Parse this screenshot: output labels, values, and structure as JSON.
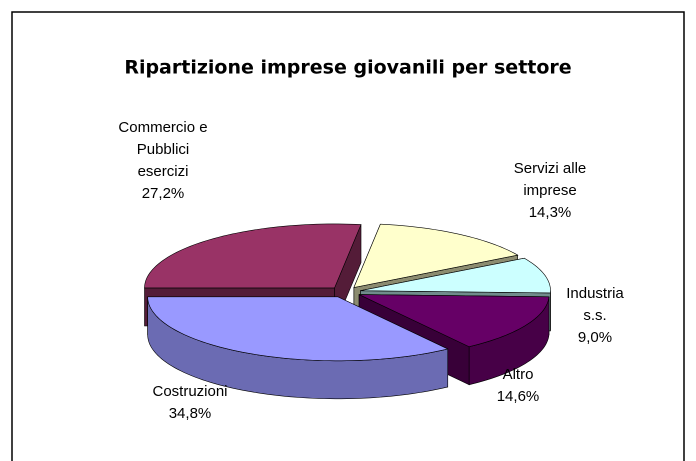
{
  "chart_data": {
    "type": "pie",
    "title": "Ripartizione imprese giovanili per settore",
    "categories": [
      "Commercio e Pubblici esercizi",
      "Servizi alle imprese",
      "Industria s.s.",
      "Altro",
      "Costruzioni"
    ],
    "values": [
      27.2,
      14.3,
      9.0,
      14.6,
      34.8
    ],
    "value_labels": [
      "27,2%",
      "14,3%",
      "9,0%",
      "14,6%",
      "34,8%"
    ],
    "colors": [
      "#993366",
      "#ffffcc",
      "#ccffff",
      "#660066",
      "#9999ff"
    ],
    "three_d": true,
    "exploded": true
  }
}
